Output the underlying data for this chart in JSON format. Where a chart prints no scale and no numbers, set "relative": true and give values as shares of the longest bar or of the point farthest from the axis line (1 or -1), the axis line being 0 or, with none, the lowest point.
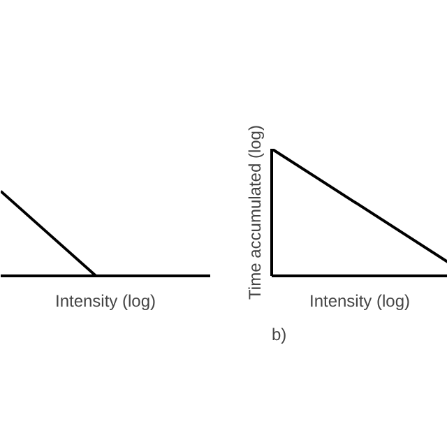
{
  "chart_data": [
    {
      "type": "line",
      "xlabel": "Intensity (log)",
      "categories": [
        null,
        null,
        null
      ],
      "relative": true,
      "tick_labels": false,
      "grid": false,
      "series": [
        {
          "color": "#000000",
          "values": [
            1,
            0,
            null
          ]
        }
      ]
    },
    {
      "type": "line",
      "xlabel": "Intensity (log)",
      "ylabel": "Time accumulated (log)",
      "categories": [
        null,
        null
      ],
      "relative": true,
      "tick_labels": false,
      "grid": false,
      "annotations": [
        "b)"
      ],
      "series": [
        {
          "color": "#000000",
          "values": [
            1,
            0.11
          ]
        }
      ]
    }
  ]
}
